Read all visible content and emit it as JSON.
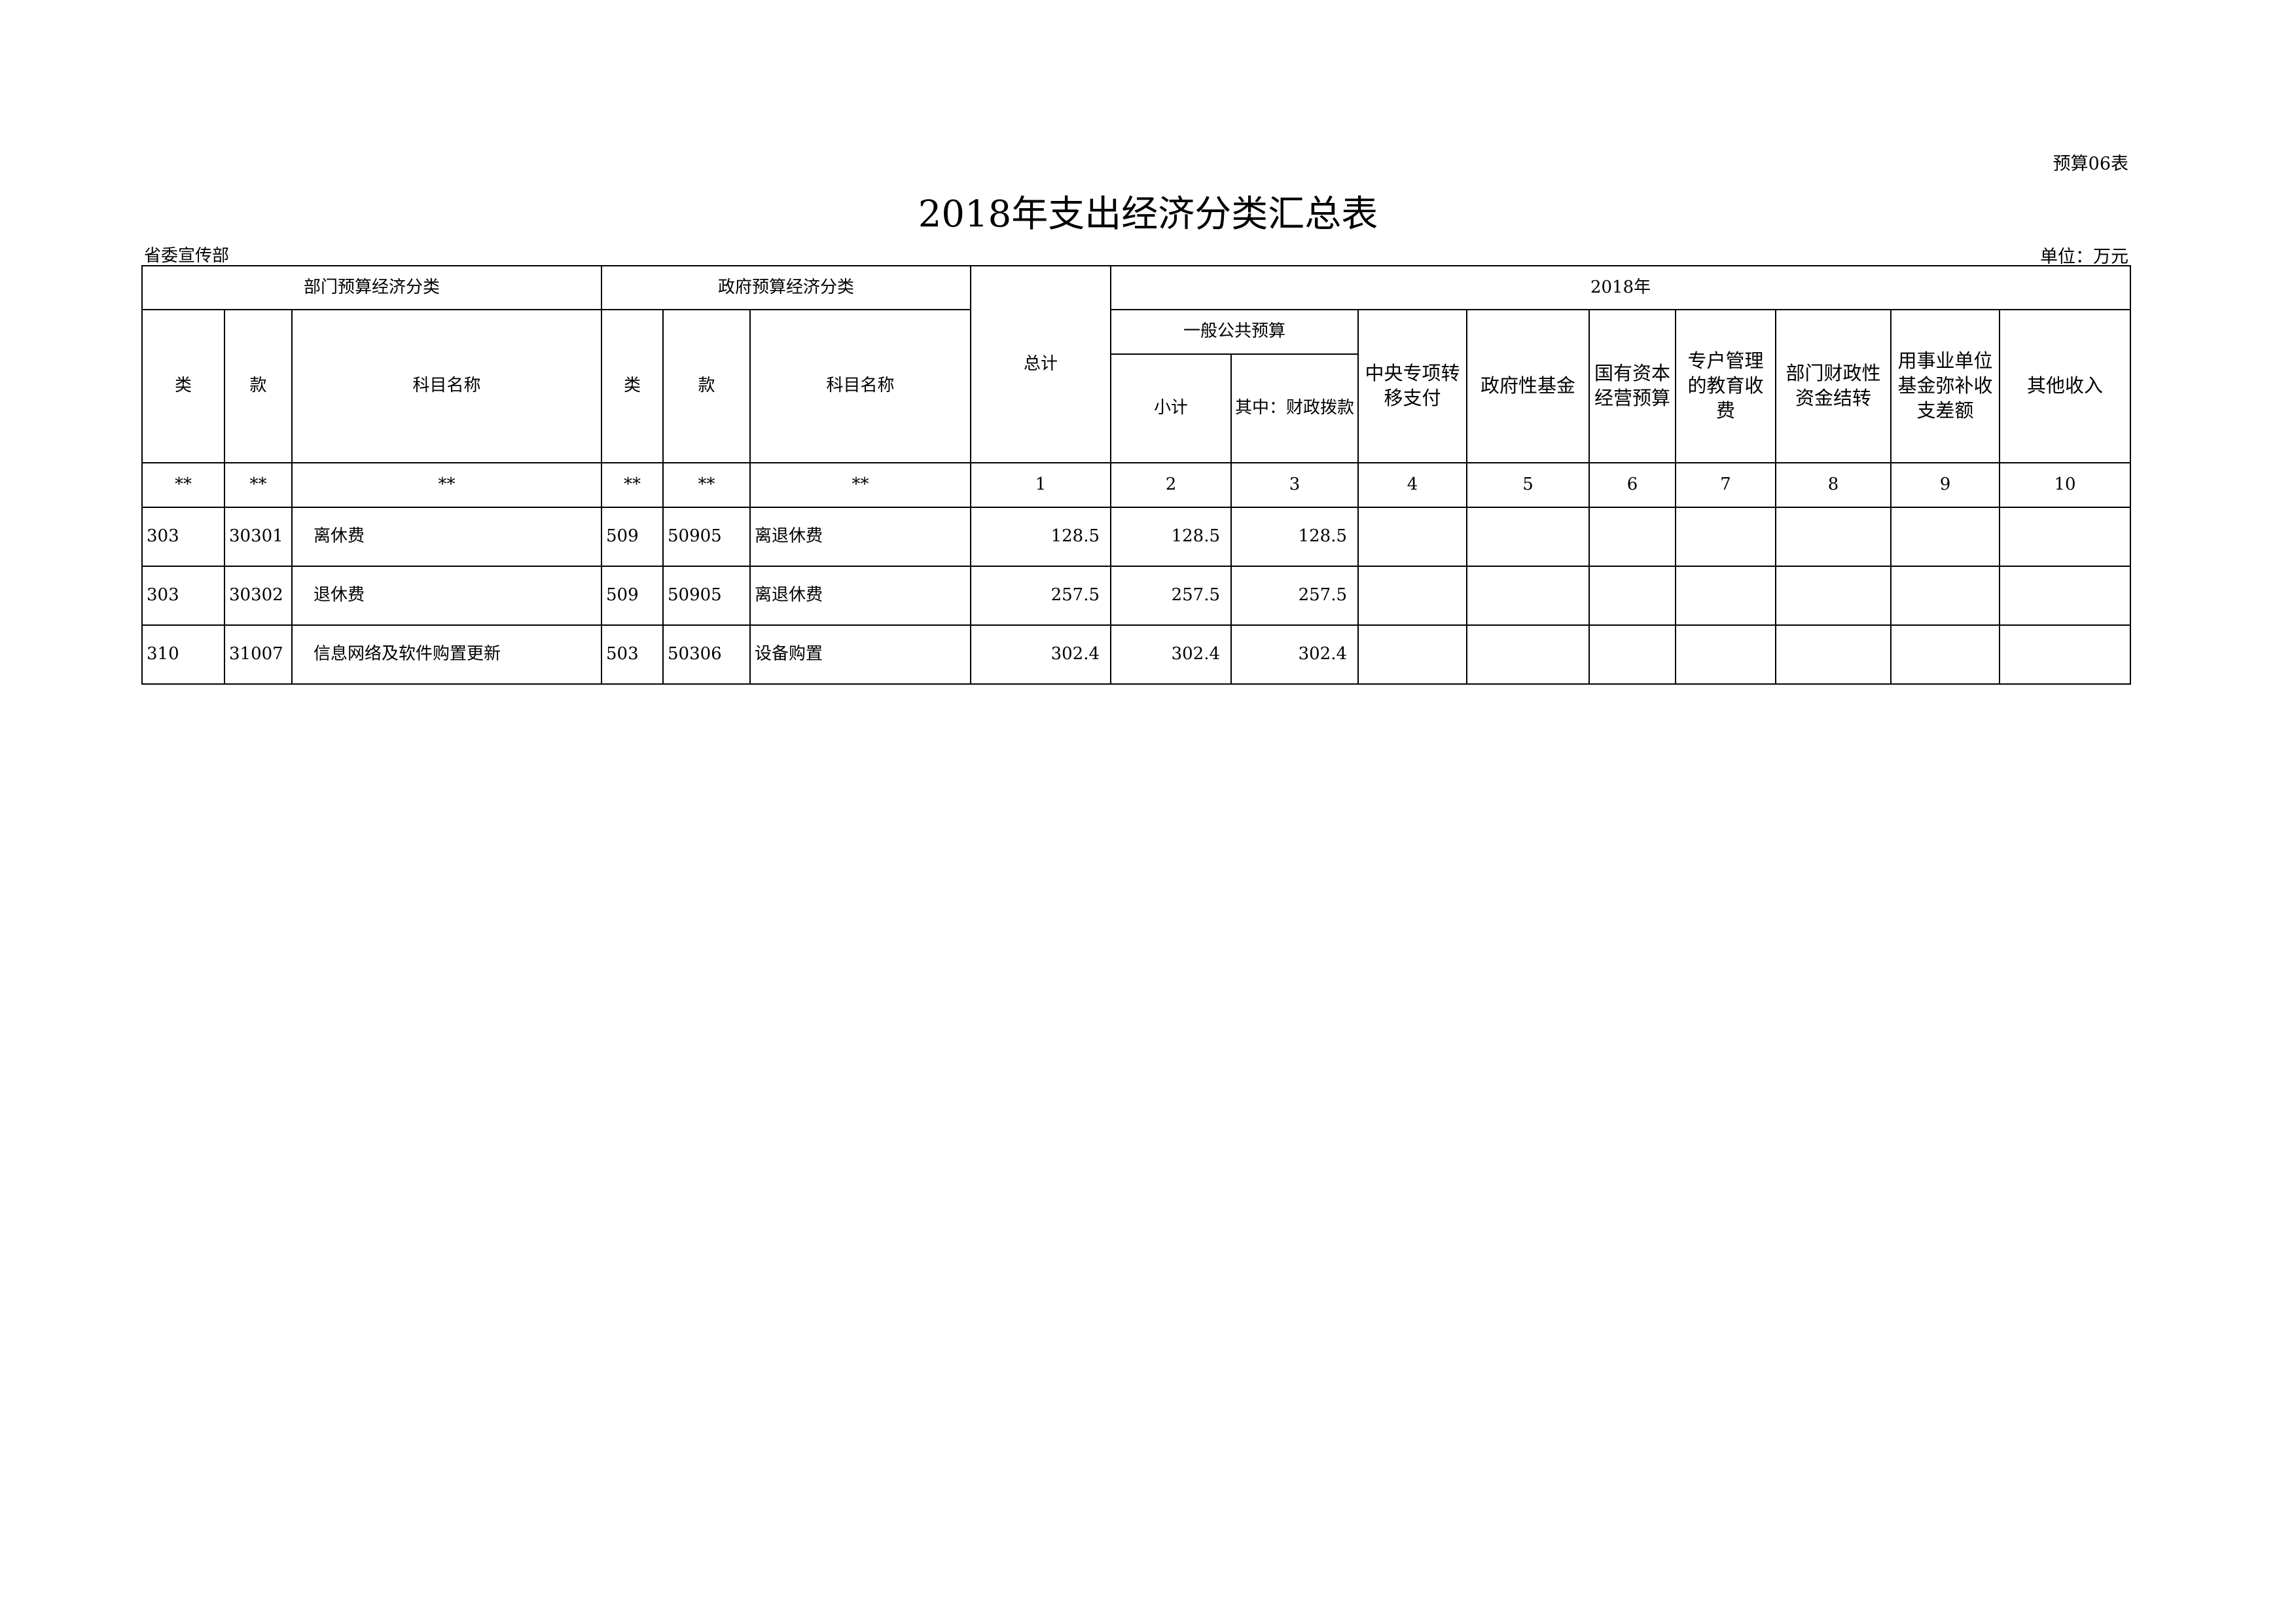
{
  "form_no": "预算06表",
  "title": "2018年支出经济分类汇总表",
  "org": "省委宣传部",
  "unit": "单位：万元",
  "headers": {
    "dept_group": "部门预算经济分类",
    "gov_group": "政府预算经济分类",
    "total": "总计",
    "year": "2018年",
    "lei": "类",
    "kuan": "款",
    "name": "科目名称",
    "general": "一般公共预算",
    "subtotal": "小计",
    "fiscal": "其中：财政拨款",
    "central": "中央专项转移支付",
    "gov_fund": "政府性基金",
    "state_capital": "国有资本经营预算",
    "edu_fee": "专户管理的教育收费",
    "carryover": "部门财政性资金结转",
    "inst_fund": "用事业单位基金弥补收支差额",
    "other": "其他收入"
  },
  "index_row": [
    "**",
    "**",
    "**",
    "**",
    "**",
    "**",
    "1",
    "2",
    "3",
    "4",
    "5",
    "6",
    "7",
    "8",
    "9",
    "10"
  ],
  "rows": [
    {
      "dept_lei": "303",
      "dept_kuan": "30301",
      "dept_name": "离休费",
      "gov_lei": "509",
      "gov_kuan": "50905",
      "gov_name": "离退休费",
      "total": "128.5",
      "subtotal": "128.5",
      "fiscal": "128.5"
    },
    {
      "dept_lei": "303",
      "dept_kuan": "30302",
      "dept_name": "退休费",
      "gov_lei": "509",
      "gov_kuan": "50905",
      "gov_name": "离退休费",
      "total": "257.5",
      "subtotal": "257.5",
      "fiscal": "257.5"
    },
    {
      "dept_lei": "310",
      "dept_kuan": "31007",
      "dept_name": "信息网络及软件购置更新",
      "gov_lei": "503",
      "gov_kuan": "50306",
      "gov_name": "设备购置",
      "total": "302.4",
      "subtotal": "302.4",
      "fiscal": "302.4"
    }
  ]
}
